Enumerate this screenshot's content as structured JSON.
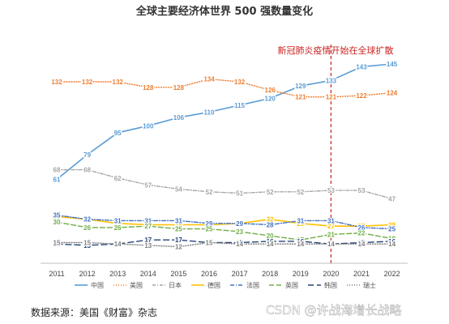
{
  "chart_data": {
    "type": "line",
    "title": "全球主要经济体世界 500 强数量变化",
    "categories": [
      "2011",
      "2012",
      "2013",
      "2014",
      "2015",
      "2016",
      "2017",
      "2018",
      "2019",
      "2020",
      "2021",
      "2022"
    ],
    "ylim": [
      0,
      155
    ],
    "grid": false,
    "legend_position": "bottom",
    "series": [
      {
        "name": "中国",
        "color": "#5b9bd5",
        "dash": "solid",
        "width": 1.6,
        "values": [
          61,
          79,
          95,
          100,
          106,
          110,
          115,
          120,
          129,
          133,
          143,
          145
        ]
      },
      {
        "name": "美国",
        "color": "#ed7d31",
        "dash": "1 2",
        "width": 1.4,
        "values": [
          132,
          132,
          132,
          128,
          128,
          134,
          132,
          126,
          121,
          121,
          122,
          124
        ]
      },
      {
        "name": "日本",
        "color": "#a5a5a5",
        "dash": "4 2 1 2",
        "width": 1.4,
        "values": [
          68,
          68,
          62,
          57,
          54,
          52,
          51,
          52,
          52,
          53,
          53,
          47
        ]
      },
      {
        "name": "德国",
        "color": "#ffc000",
        "dash": "solid",
        "width": 1.6,
        "values": [
          34,
          32,
          29,
          28,
          28,
          28,
          29,
          32,
          29,
          27,
          27,
          28
        ]
      },
      {
        "name": "法国",
        "color": "#4472c4",
        "dash": "5 2 1 2",
        "width": 1.4,
        "values": [
          35,
          32,
          31,
          31,
          31,
          29,
          29,
          28,
          31,
          31,
          26,
          25
        ]
      },
      {
        "name": "英国",
        "color": "#70ad47",
        "dash": "6 3",
        "width": 1.4,
        "values": [
          30,
          26,
          26,
          27,
          25,
          25,
          23,
          20,
          17,
          21,
          22,
          18
        ]
      },
      {
        "name": "韩国",
        "color": "#264478",
        "dash": "7 4",
        "width": 1.4,
        "values": [
          14,
          13,
          14,
          17,
          17,
          15,
          15,
          16,
          16,
          14,
          15,
          16
        ]
      },
      {
        "name": "瑞士",
        "color": "#7f7f7f",
        "dash": "1 2",
        "width": 1.4,
        "values": [
          15,
          15,
          14,
          13,
          12,
          15,
          14,
          14,
          14,
          14,
          14,
          14
        ]
      }
    ],
    "annotation": {
      "text": "新冠肺炎疫情开始在全球扩散",
      "x_category": "2020",
      "color": "#cc2222"
    }
  },
  "source": "数据来源：美国《财富》杂志",
  "watermark": "CSDN @许战海增长战略"
}
